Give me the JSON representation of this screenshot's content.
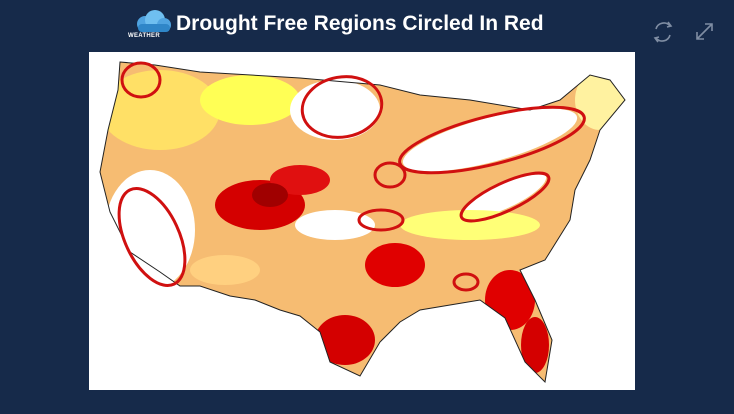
{
  "header": {
    "logo": "WEATHER",
    "title": "Drought Free Regions Circled In Red"
  }
}
